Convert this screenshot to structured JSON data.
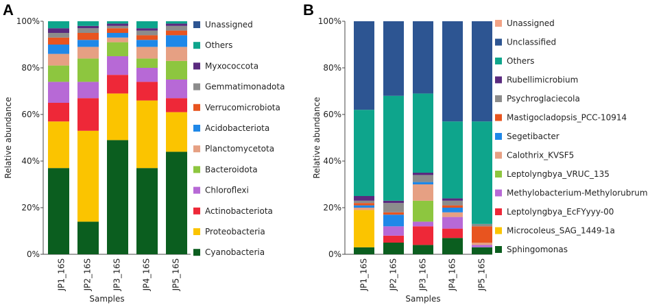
{
  "chart_data": [
    {
      "panel": "A",
      "type": "bar",
      "stacked": true,
      "title": "",
      "xlabel": "Samples",
      "ylabel": "Relative abundance",
      "ylim": [
        0,
        100
      ],
      "yticks": [
        "0%",
        "20%",
        "40%",
        "60%",
        "80%",
        "100%"
      ],
      "categories": [
        "JP1_16S",
        "JP2_16S",
        "JP3_16S",
        "JP4_16S",
        "JP5_16S"
      ],
      "series": [
        {
          "name": "Cyanobacteria",
          "color": "#0b5e1f",
          "values": [
            37,
            14,
            49,
            37,
            44
          ]
        },
        {
          "name": "Proteobacteria",
          "color": "#fbc400",
          "values": [
            20,
            39,
            20,
            29,
            17
          ]
        },
        {
          "name": "Actinobacteriota",
          "color": "#ee2838",
          "values": [
            8,
            14,
            8,
            8,
            6
          ]
        },
        {
          "name": "Chloroflexi",
          "color": "#b769d6",
          "values": [
            9,
            7,
            8,
            6,
            8
          ]
        },
        {
          "name": "Bacteroidota",
          "color": "#8dc63f",
          "values": [
            7,
            10,
            6,
            4,
            8
          ]
        },
        {
          "name": "Planctomycetota",
          "color": "#e6a083",
          "values": [
            5,
            5,
            2,
            5,
            6
          ]
        },
        {
          "name": "Acidobacteriota",
          "color": "#1f88e8",
          "values": [
            4,
            3,
            2,
            3,
            5
          ]
        },
        {
          "name": "Verrucomicrobiota",
          "color": "#e8541f",
          "values": [
            3,
            3,
            2,
            2,
            2
          ]
        },
        {
          "name": "Gemmatimonadota",
          "color": "#8c8c8c",
          "values": [
            2,
            2,
            1,
            2,
            2
          ]
        },
        {
          "name": "Myxococcota",
          "color": "#5a2a7f",
          "values": [
            2,
            1,
            1,
            1,
            1
          ]
        },
        {
          "name": "Others",
          "color": "#0ea58c",
          "values": [
            3,
            2,
            1,
            3,
            1
          ]
        },
        {
          "name": "Unassigned",
          "color": "#2d5592",
          "values": [
            0,
            0,
            0,
            0,
            0
          ]
        }
      ],
      "legend": [
        "Unassigned",
        "Others",
        "Myxococcota",
        "Gemmatimonadota",
        "Verrucomicrobiota",
        "Acidobacteriota",
        "Planctomycetota",
        "Bacteroidota",
        "Chloroflexi",
        "Actinobacteriota",
        "Proteobacteria",
        "Cyanobacteria"
      ]
    },
    {
      "panel": "B",
      "type": "bar",
      "stacked": true,
      "title": "",
      "xlabel": "Samples",
      "ylabel": "Relative abundance",
      "ylim": [
        0,
        100
      ],
      "yticks": [
        "0%",
        "20%",
        "40%",
        "60%",
        "80%",
        "100%"
      ],
      "categories": [
        "JP1_16S",
        "JP2_16S",
        "JP3_16S",
        "JP4_16S",
        "JP5_16S"
      ],
      "series": [
        {
          "name": "Sphingomonas",
          "color": "#0b5e1f",
          "values": [
            3,
            5,
            4,
            7,
            3
          ]
        },
        {
          "name": "Microcoleus_SAG_1449-1a",
          "color": "#fbc400",
          "values": [
            16,
            0,
            0,
            0,
            0
          ]
        },
        {
          "name": "Leptolyngbya_EcFYyyy-00",
          "color": "#ee2838",
          "values": [
            0,
            3,
            8,
            4,
            0
          ]
        },
        {
          "name": "Methylobacterium-Methylorubrum",
          "color": "#b769d6",
          "values": [
            0,
            4,
            2,
            5,
            1
          ]
        },
        {
          "name": "Leptolyngbya_VRUC_135",
          "color": "#8dc63f",
          "values": [
            0,
            0,
            9,
            0,
            0
          ]
        },
        {
          "name": "Calothrix_KVSF5",
          "color": "#e6a083",
          "values": [
            1,
            0,
            7,
            2,
            1
          ]
        },
        {
          "name": "Segetibacter",
          "color": "#1f88e8",
          "values": [
            1,
            5,
            1,
            2,
            0
          ]
        },
        {
          "name": "Mastigocladopsis_PCC-10914",
          "color": "#e8541f",
          "values": [
            1,
            1,
            0,
            1,
            7
          ]
        },
        {
          "name": "Psychroglaciecola",
          "color": "#8c8c8c",
          "values": [
            1,
            4,
            3,
            2,
            1
          ]
        },
        {
          "name": "Rubellimicrobium",
          "color": "#5a2a7f",
          "values": [
            2,
            1,
            1,
            1,
            0
          ]
        },
        {
          "name": "Others",
          "color": "#0ea58c",
          "values": [
            37,
            45,
            34,
            33,
            44
          ]
        },
        {
          "name": "Unclassified",
          "color": "#2d5592",
          "values": [
            38,
            32,
            31,
            43,
            43
          ]
        },
        {
          "name": "Unassigned",
          "color": "#f2a385",
          "values": [
            0,
            0,
            0,
            0,
            0
          ]
        }
      ],
      "legend": [
        "Unassigned",
        "Unclassified",
        "Others",
        "Rubellimicrobium",
        "Psychroglaciecola",
        "Mastigocladopsis_PCC-10914",
        "Segetibacter",
        "Calothrix_KVSF5",
        "Leptolyngbya_VRUC_135",
        "Methylobacterium-Methylorubrum",
        "Leptolyngbya_EcFYyyy-00",
        "Microcoleus_SAG_1449-1a",
        "Sphingomonas"
      ]
    }
  ]
}
